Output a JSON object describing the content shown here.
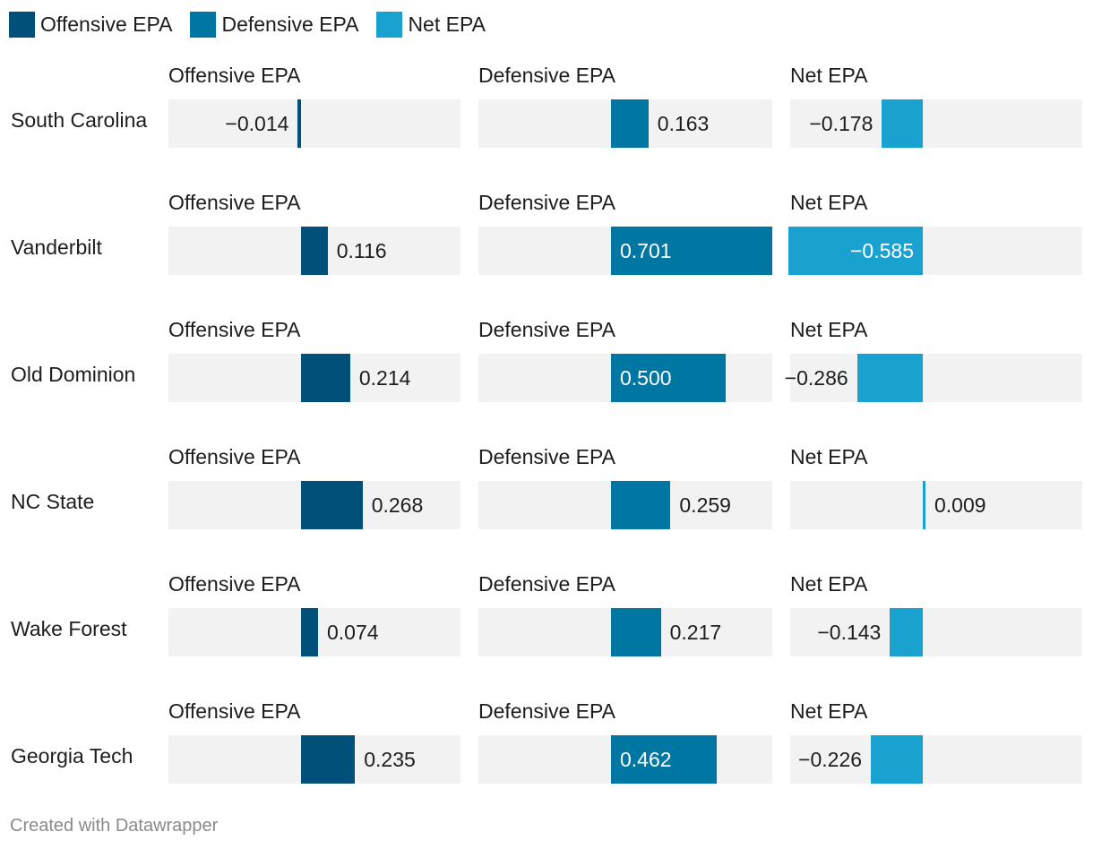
{
  "legend": [
    {
      "label": "Offensive EPA",
      "color": "#00507a"
    },
    {
      "label": "Defensive EPA",
      "color": "#0076a3"
    },
    {
      "label": "Net EPA",
      "color": "#19a2cf"
    }
  ],
  "footer": "Created with Datawrapper",
  "chart_data": {
    "type": "bar",
    "orientation": "horizontal",
    "layout": "small-multiples",
    "categories": [
      "South Carolina",
      "Vanderbilt",
      "Old Dominion",
      "NC State",
      "Wake Forest",
      "Georgia Tech"
    ],
    "series": [
      {
        "name": "Offensive EPA",
        "color": "#00507a",
        "values": [
          -0.014,
          0.116,
          0.214,
          0.268,
          0.074,
          0.235
        ]
      },
      {
        "name": "Defensive EPA",
        "color": "#0076a3",
        "values": [
          0.163,
          0.701,
          0.5,
          0.259,
          0.217,
          0.462
        ]
      },
      {
        "name": "Net EPA",
        "color": "#19a2cf",
        "values": [
          -0.178,
          -0.585,
          -0.286,
          0.009,
          -0.143,
          -0.226
        ]
      }
    ],
    "value_labels": [
      [
        "−0.014",
        "0.163",
        "−0.178"
      ],
      [
        "0.116",
        "0.701",
        "−0.585"
      ],
      [
        "0.214",
        "0.500",
        "−0.286"
      ],
      [
        "0.268",
        "0.259",
        "0.009"
      ],
      [
        "0.074",
        "0.217",
        "−0.143"
      ],
      [
        "0.235",
        "0.462",
        "−0.226"
      ]
    ],
    "xlim": [
      -0.585,
      0.701
    ],
    "grid": false
  }
}
